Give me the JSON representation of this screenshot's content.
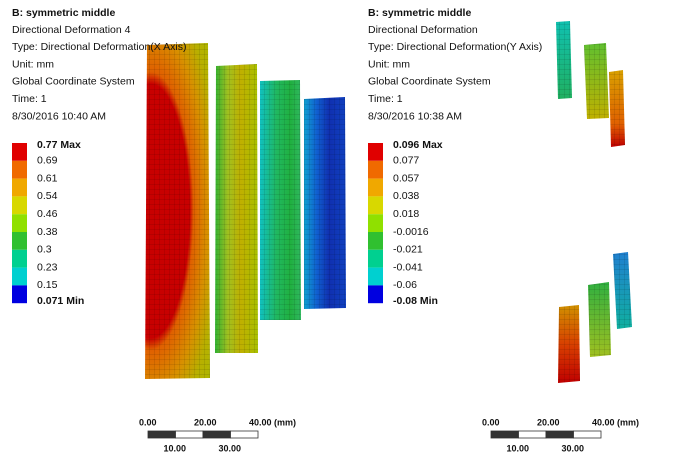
{
  "panels": [
    {
      "header": {
        "title": "B: symmetric middle",
        "lines": [
          "Directional Deformation 4",
          "Type: Directional Deformation(X Axis)",
          "Unit: mm",
          "Global Coordinate System",
          "Time: 1",
          "8/30/2016 10:40 AM"
        ]
      },
      "legend": {
        "labels": [
          "0.77 Max",
          "0.69",
          "0.61",
          "0.54",
          "0.46",
          "0.38",
          "0.3",
          "0.23",
          "0.15",
          "0.071 Min"
        ]
      },
      "scale": {
        "top": [
          "0.00",
          "20.00",
          "40.00 (mm)"
        ],
        "bottom": [
          "10.00",
          "30.00"
        ]
      }
    },
    {
      "header": {
        "title": "B: symmetric middle",
        "lines": [
          "Directional Deformation",
          "Type: Directional Deformation(Y Axis)",
          "Unit: mm",
          "Global Coordinate System",
          "Time: 1",
          "8/30/2016 10:38 AM"
        ]
      },
      "legend": {
        "labels": [
          "0.096 Max",
          "0.077",
          "0.057",
          "0.038",
          "0.018",
          "-0.0016",
          "-0.021",
          "-0.041",
          "-0.06",
          "-0.08 Min"
        ]
      },
      "scale": {
        "top": [
          "0.00",
          "20.00",
          "40.00 (mm)"
        ],
        "bottom": [
          "10.00",
          "30.00"
        ]
      }
    }
  ]
}
